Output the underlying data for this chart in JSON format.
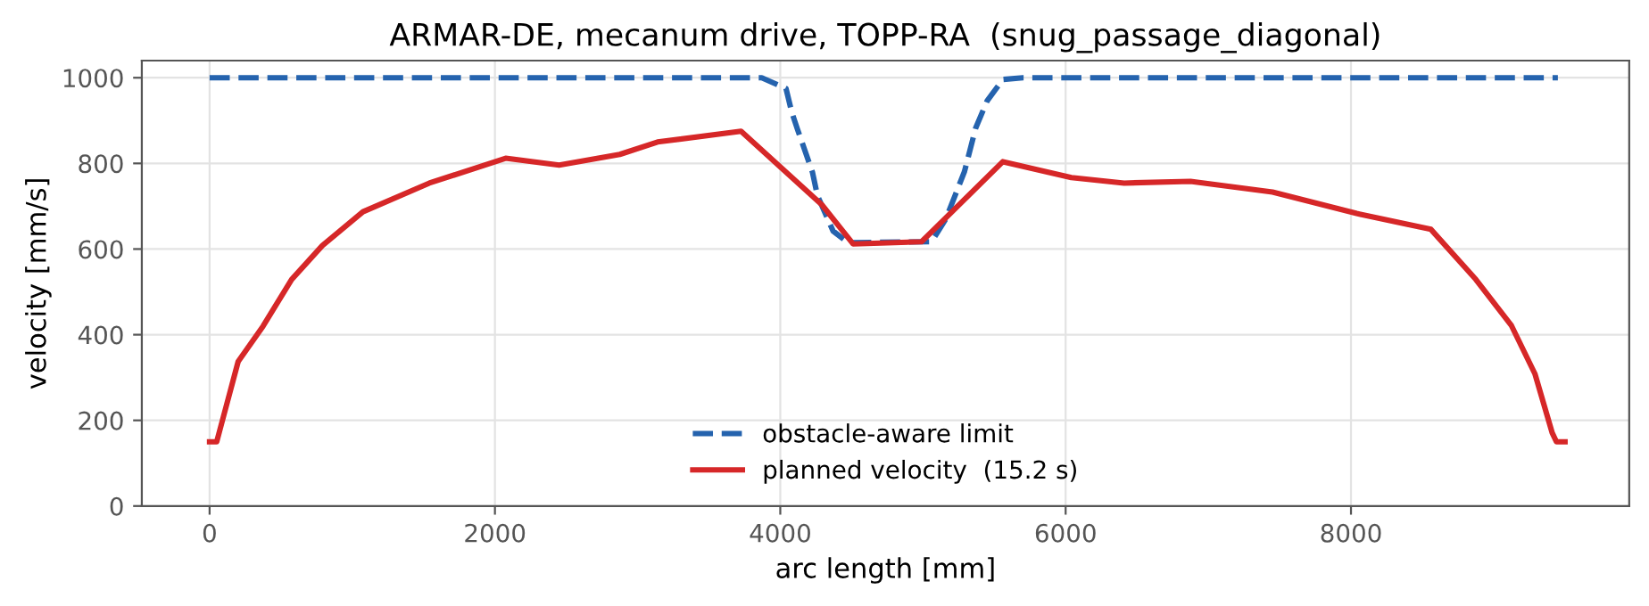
{
  "chart_data": {
    "type": "line",
    "title": "ARMAR-DE, mecanum drive, TOPP-RA  (snug_passage_diagonal)",
    "xlabel": "arc length [mm]",
    "ylabel": "velocity [mm/s]",
    "xlim": [
      -475,
      9950
    ],
    "ylim": [
      0,
      1040
    ],
    "xticks": [
      0,
      2000,
      4000,
      6000,
      8000
    ],
    "yticks": [
      0,
      200,
      400,
      600,
      800,
      1000
    ],
    "grid": true,
    "legend": "bottom",
    "series": [
      {
        "name": "obstacle-aware limit",
        "color": "#2563ae",
        "line_style": "dashed",
        "x": [
          0,
          3870,
          4040,
          4080,
          4120,
          4225,
          4260,
          4370,
          4475,
          5060,
          5160,
          5290,
          5370,
          5450,
          5560,
          5700,
          9450
        ],
        "values": [
          1000,
          1000,
          975,
          920,
          880,
          780,
          725,
          642,
          615,
          617,
          670,
          780,
          883,
          946,
          996,
          1000,
          1000
        ]
      },
      {
        "name": "planned velocity  (15.2 s)",
        "color": "#d62728",
        "line_style": "solid",
        "x": [
          0,
          50,
          200,
          375,
          575,
          790,
          1075,
          1540,
          2075,
          2450,
          2875,
          3140,
          3725,
          4290,
          4510,
          4990,
          5560,
          6040,
          6410,
          6875,
          7450,
          8040,
          8560,
          8875,
          9125,
          9290,
          9410,
          9440,
          9500
        ],
        "values": [
          150,
          150,
          337,
          420,
          529,
          608,
          687,
          754,
          812,
          796,
          821,
          850,
          875,
          704,
          612,
          617,
          804,
          767,
          754,
          758,
          733,
          683,
          646,
          529,
          421,
          308,
          171,
          150,
          150
        ]
      }
    ]
  }
}
